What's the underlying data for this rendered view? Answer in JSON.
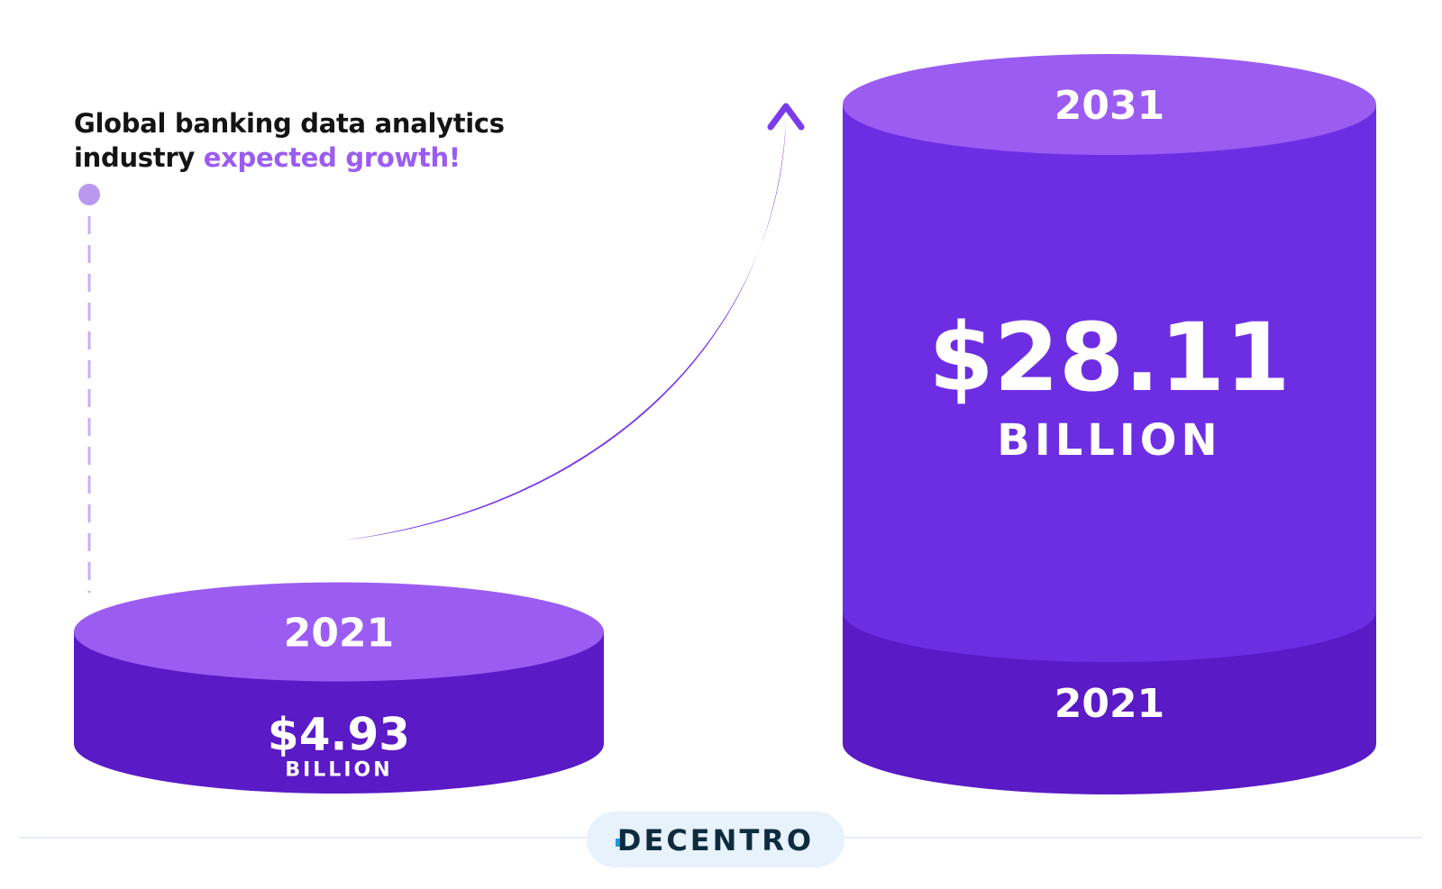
{
  "title": {
    "line1": "Global banking data analytics",
    "line2_prefix": "industry",
    "line2_highlight": "expected growth!"
  },
  "chart_data": {
    "type": "bar",
    "categories": [
      "2021",
      "2031"
    ],
    "values": [
      4.93,
      28.11
    ],
    "value_labels": [
      "$4.93",
      "$28.11"
    ],
    "unit": "BILLION",
    "inner_reference_label": "2021"
  },
  "colors": {
    "top": "#9b5cf2",
    "body": "#6d2ee3",
    "base": "#5a1ac6",
    "accent_text": "#9b5cf2",
    "dashed_line": "#c9adf5",
    "brand_pill": "#e7f2fc",
    "brand_text": "#0e2c3e",
    "brand_dot": "#1e9ae0"
  },
  "brand": {
    "name": "DECENTRO"
  }
}
